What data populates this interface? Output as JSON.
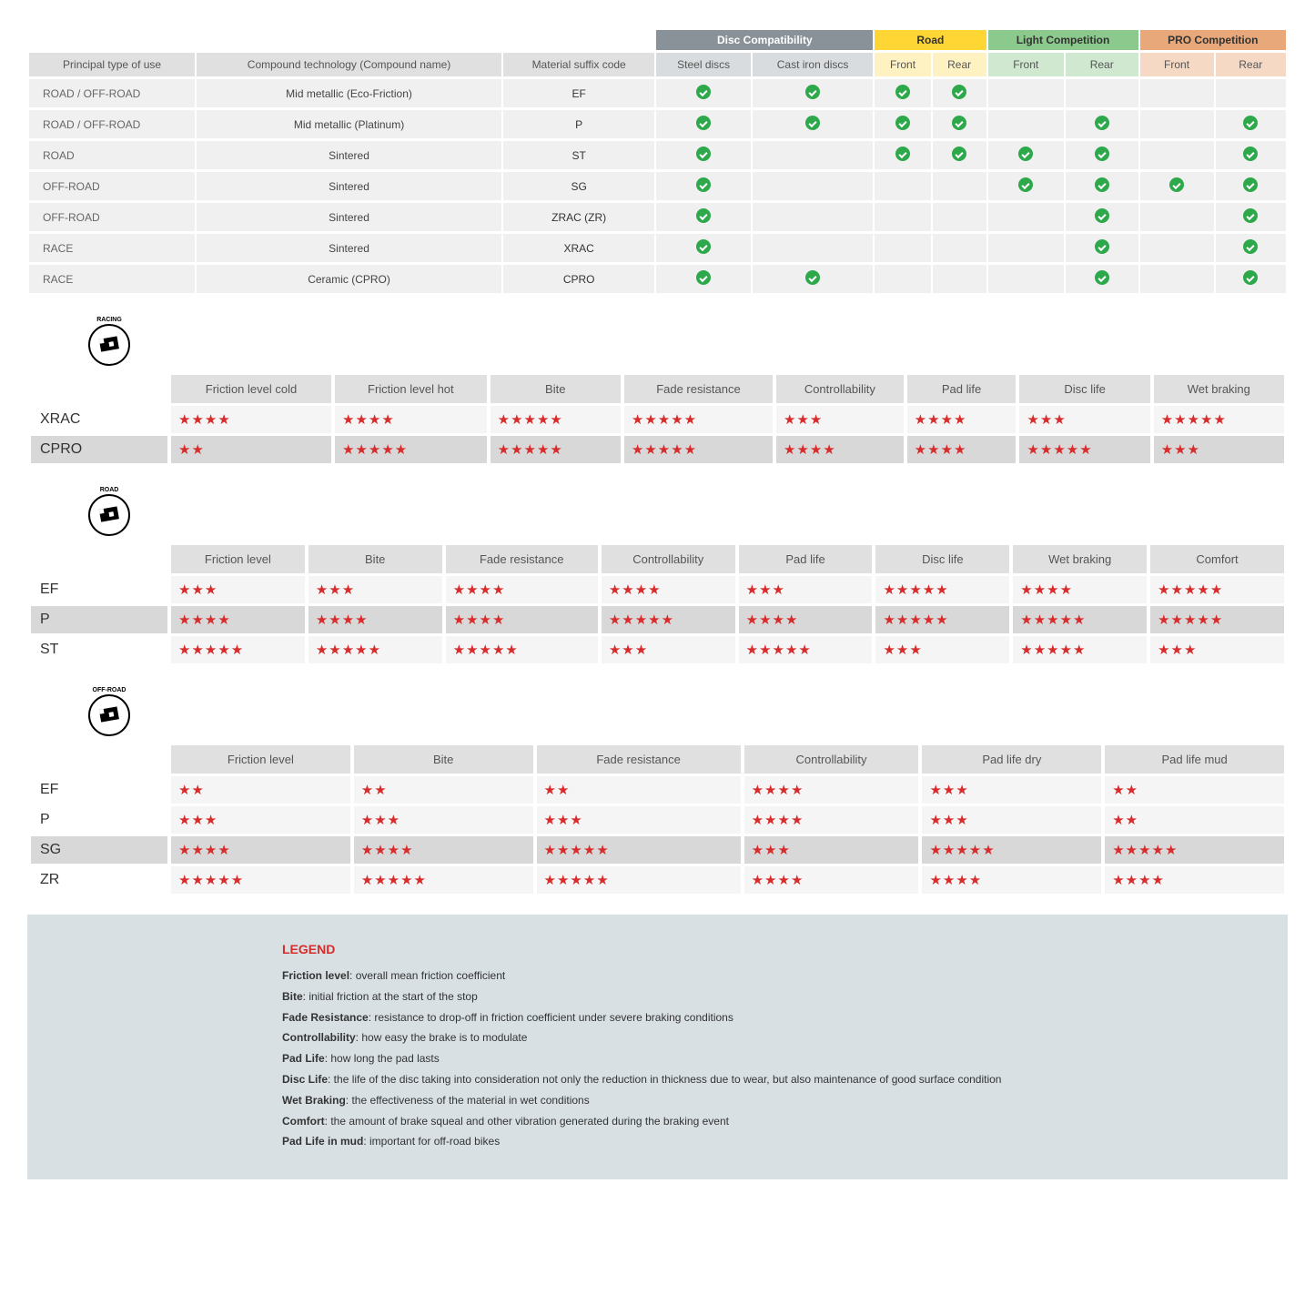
{
  "compatHeaders": {
    "principal": "Principal type of use",
    "compound": "Compound technology (Compound name)",
    "suffix": "Material suffix code",
    "groups": {
      "disc": "Disc Compatibility",
      "road": "Road",
      "light": "Light Competition",
      "pro": "PRO Competition"
    },
    "subs": {
      "steel": "Steel discs",
      "cast": "Cast iron discs",
      "front": "Front",
      "rear": "Rear"
    }
  },
  "compatRows": [
    {
      "use": "ROAD / OFF-ROAD",
      "compound": "Mid metallic (Eco-Friction)",
      "suffix": "EF",
      "c": [
        1,
        1,
        1,
        1,
        0,
        0,
        0,
        0
      ]
    },
    {
      "use": "ROAD / OFF-ROAD",
      "compound": "Mid metallic (Platinum)",
      "suffix": "P",
      "c": [
        1,
        1,
        1,
        1,
        0,
        1,
        0,
        1
      ]
    },
    {
      "use": "ROAD",
      "compound": "Sintered",
      "suffix": "ST",
      "c": [
        1,
        0,
        1,
        1,
        1,
        1,
        0,
        1
      ]
    },
    {
      "use": "OFF-ROAD",
      "compound": "Sintered",
      "suffix": "SG",
      "c": [
        1,
        0,
        0,
        0,
        1,
        1,
        1,
        1
      ]
    },
    {
      "use": "OFF-ROAD",
      "compound": "Sintered",
      "suffix": "ZRAC (ZR)",
      "c": [
        1,
        0,
        0,
        0,
        0,
        1,
        0,
        1
      ]
    },
    {
      "use": "RACE",
      "compound": "Sintered",
      "suffix": "XRAC",
      "c": [
        1,
        0,
        0,
        0,
        0,
        1,
        0,
        1
      ]
    },
    {
      "use": "RACE",
      "compound": "Ceramic (CPRO)",
      "suffix": "CPRO",
      "c": [
        1,
        1,
        0,
        0,
        0,
        1,
        0,
        1
      ]
    }
  ],
  "sections": [
    {
      "badge": "RACING",
      "headers": [
        "Friction level cold",
        "Friction level hot",
        "Bite",
        "Fade resistance",
        "Controllability",
        "Pad life",
        "Disc life",
        "Wet braking"
      ],
      "rows": [
        {
          "label": "XRAC",
          "shaded": false,
          "stars": [
            4,
            4,
            5,
            5,
            3,
            4,
            3,
            5
          ]
        },
        {
          "label": "CPRO",
          "shaded": true,
          "stars": [
            2,
            5,
            5,
            5,
            4,
            4,
            5,
            3
          ]
        }
      ]
    },
    {
      "badge": "ROAD",
      "headers": [
        "Friction level",
        "Bite",
        "Fade resistance",
        "Controllability",
        "Pad life",
        "Disc life",
        "Wet braking",
        "Comfort"
      ],
      "rows": [
        {
          "label": "EF",
          "shaded": false,
          "stars": [
            3,
            3,
            4,
            4,
            3,
            5,
            4,
            5
          ]
        },
        {
          "label": "P",
          "shaded": true,
          "stars": [
            4,
            4,
            4,
            5,
            4,
            5,
            5,
            5
          ]
        },
        {
          "label": "ST",
          "shaded": false,
          "stars": [
            5,
            5,
            5,
            3,
            5,
            3,
            5,
            3
          ]
        }
      ]
    },
    {
      "badge": "OFF-ROAD",
      "headers": [
        "Friction level",
        "Bite",
        "Fade resistance",
        "Controllability",
        "Pad life dry",
        "Pad life mud"
      ],
      "rows": [
        {
          "label": "EF",
          "shaded": false,
          "stars": [
            2,
            2,
            2,
            4,
            3,
            2
          ]
        },
        {
          "label": "P",
          "shaded": false,
          "stars": [
            3,
            3,
            3,
            4,
            3,
            2
          ]
        },
        {
          "label": "SG",
          "shaded": true,
          "stars": [
            4,
            4,
            5,
            3,
            5,
            5
          ]
        },
        {
          "label": "ZR",
          "shaded": false,
          "stars": [
            5,
            5,
            5,
            4,
            4,
            4
          ]
        }
      ]
    }
  ],
  "legend": {
    "title": "LEGEND",
    "items": [
      {
        "term": "Friction level",
        "def": "overall mean friction coefficient"
      },
      {
        "term": "Bite",
        "def": "initial friction at the start of the stop"
      },
      {
        "term": "Fade Resistance",
        "def": "resistance to drop-off in friction coefficient under severe braking conditions"
      },
      {
        "term": "Controllability",
        "def": "how easy the brake is to modulate"
      },
      {
        "term": "Pad Life",
        "def": "how long the pad lasts"
      },
      {
        "term": "Disc Life",
        "def": "the life of the disc taking into consideration not only the reduction in thickness due to wear, but also maintenance of good surface condition"
      },
      {
        "term": "Wet Braking",
        "def": "the effectiveness of the material in wet conditions"
      },
      {
        "term": "Comfort",
        "def": "the amount of brake squeal and other vibration generated during the braking event"
      },
      {
        "term": "Pad Life in mud",
        "def": "important for off-road bikes"
      }
    ]
  },
  "colors": {
    "star": "#d82c2c",
    "check": "#2da84a"
  }
}
